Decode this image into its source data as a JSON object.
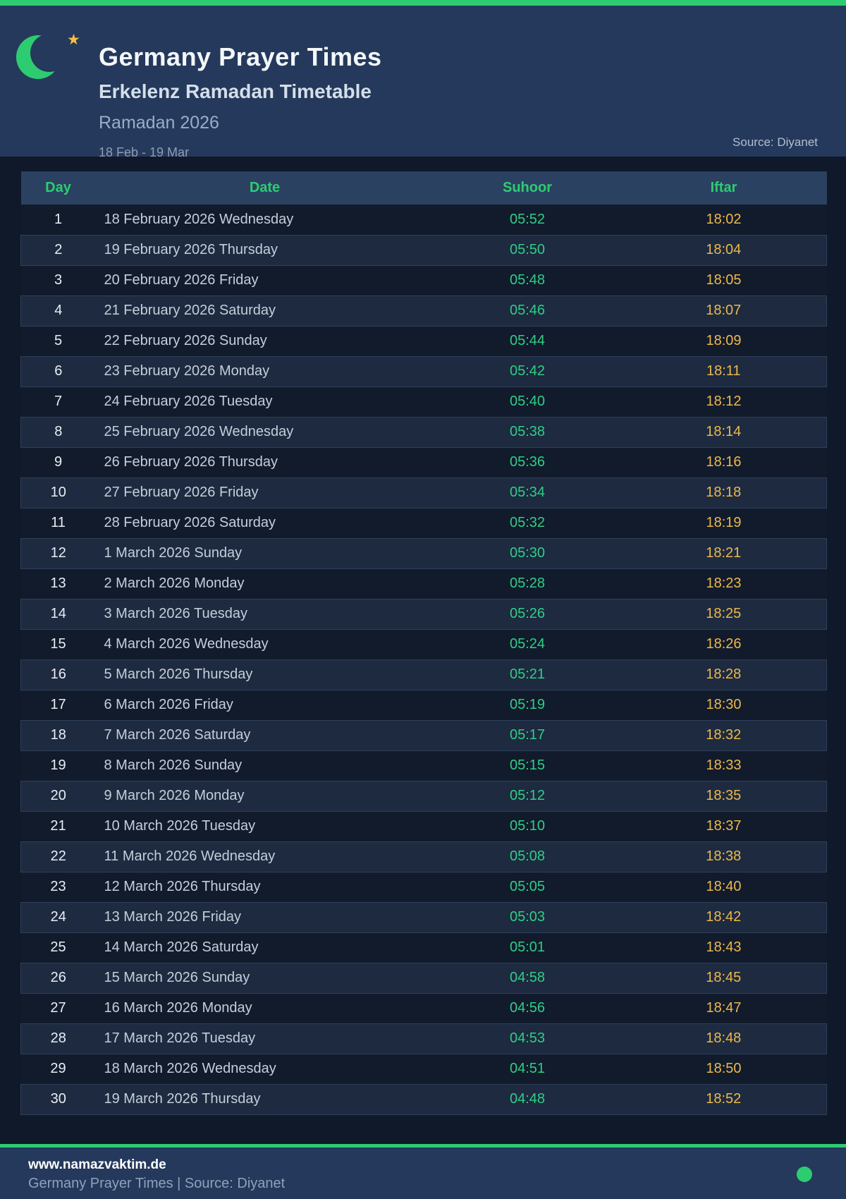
{
  "header": {
    "title": "Germany Prayer Times",
    "subtitle": "Erkelenz Ramadan Timetable",
    "season": "Ramadan 2026",
    "date_range": "18 Feb - 19 Mar",
    "source": "Source: Diyanet",
    "star_glyph": "★"
  },
  "table": {
    "columns": [
      "Day",
      "Date",
      "Suhoor",
      "Iftar"
    ],
    "rows": [
      [
        "1",
        "18 February 2026 Wednesday",
        "05:52",
        "18:02"
      ],
      [
        "2",
        "19 February 2026 Thursday",
        "05:50",
        "18:04"
      ],
      [
        "3",
        "20 February 2026 Friday",
        "05:48",
        "18:05"
      ],
      [
        "4",
        "21 February 2026 Saturday",
        "05:46",
        "18:07"
      ],
      [
        "5",
        "22 February 2026 Sunday",
        "05:44",
        "18:09"
      ],
      [
        "6",
        "23 February 2026 Monday",
        "05:42",
        "18:11"
      ],
      [
        "7",
        "24 February 2026 Tuesday",
        "05:40",
        "18:12"
      ],
      [
        "8",
        "25 February 2026 Wednesday",
        "05:38",
        "18:14"
      ],
      [
        "9",
        "26 February 2026 Thursday",
        "05:36",
        "18:16"
      ],
      [
        "10",
        "27 February 2026 Friday",
        "05:34",
        "18:18"
      ],
      [
        "11",
        "28 February 2026 Saturday",
        "05:32",
        "18:19"
      ],
      [
        "12",
        "1 March 2026 Sunday",
        "05:30",
        "18:21"
      ],
      [
        "13",
        "2 March 2026 Monday",
        "05:28",
        "18:23"
      ],
      [
        "14",
        "3 March 2026 Tuesday",
        "05:26",
        "18:25"
      ],
      [
        "15",
        "4 March 2026 Wednesday",
        "05:24",
        "18:26"
      ],
      [
        "16",
        "5 March 2026 Thursday",
        "05:21",
        "18:28"
      ],
      [
        "17",
        "6 March 2026 Friday",
        "05:19",
        "18:30"
      ],
      [
        "18",
        "7 March 2026 Saturday",
        "05:17",
        "18:32"
      ],
      [
        "19",
        "8 March 2026 Sunday",
        "05:15",
        "18:33"
      ],
      [
        "20",
        "9 March 2026 Monday",
        "05:12",
        "18:35"
      ],
      [
        "21",
        "10 March 2026 Tuesday",
        "05:10",
        "18:37"
      ],
      [
        "22",
        "11 March 2026 Wednesday",
        "05:08",
        "18:38"
      ],
      [
        "23",
        "12 March 2026 Thursday",
        "05:05",
        "18:40"
      ],
      [
        "24",
        "13 March 2026 Friday",
        "05:03",
        "18:42"
      ],
      [
        "25",
        "14 March 2026 Saturday",
        "05:01",
        "18:43"
      ],
      [
        "26",
        "15 March 2026 Sunday",
        "04:58",
        "18:45"
      ],
      [
        "27",
        "16 March 2026 Monday",
        "04:56",
        "18:47"
      ],
      [
        "28",
        "17 March 2026 Tuesday",
        "04:53",
        "18:48"
      ],
      [
        "29",
        "18 March 2026 Wednesday",
        "04:51",
        "18:50"
      ],
      [
        "30",
        "19 March 2026 Thursday",
        "04:48",
        "18:52"
      ]
    ]
  },
  "footer": {
    "website": "www.namazvaktim.de",
    "tagline": "Germany Prayer Times | Source: Diyanet"
  },
  "colors": {
    "accent_green": "#2ECC71",
    "suhoor_green": "#2FCE85",
    "iftar_amber": "#EDB84A",
    "band_navy": "#24395B",
    "page_bg": "#0F1929",
    "star_gold": "#F5C242"
  }
}
